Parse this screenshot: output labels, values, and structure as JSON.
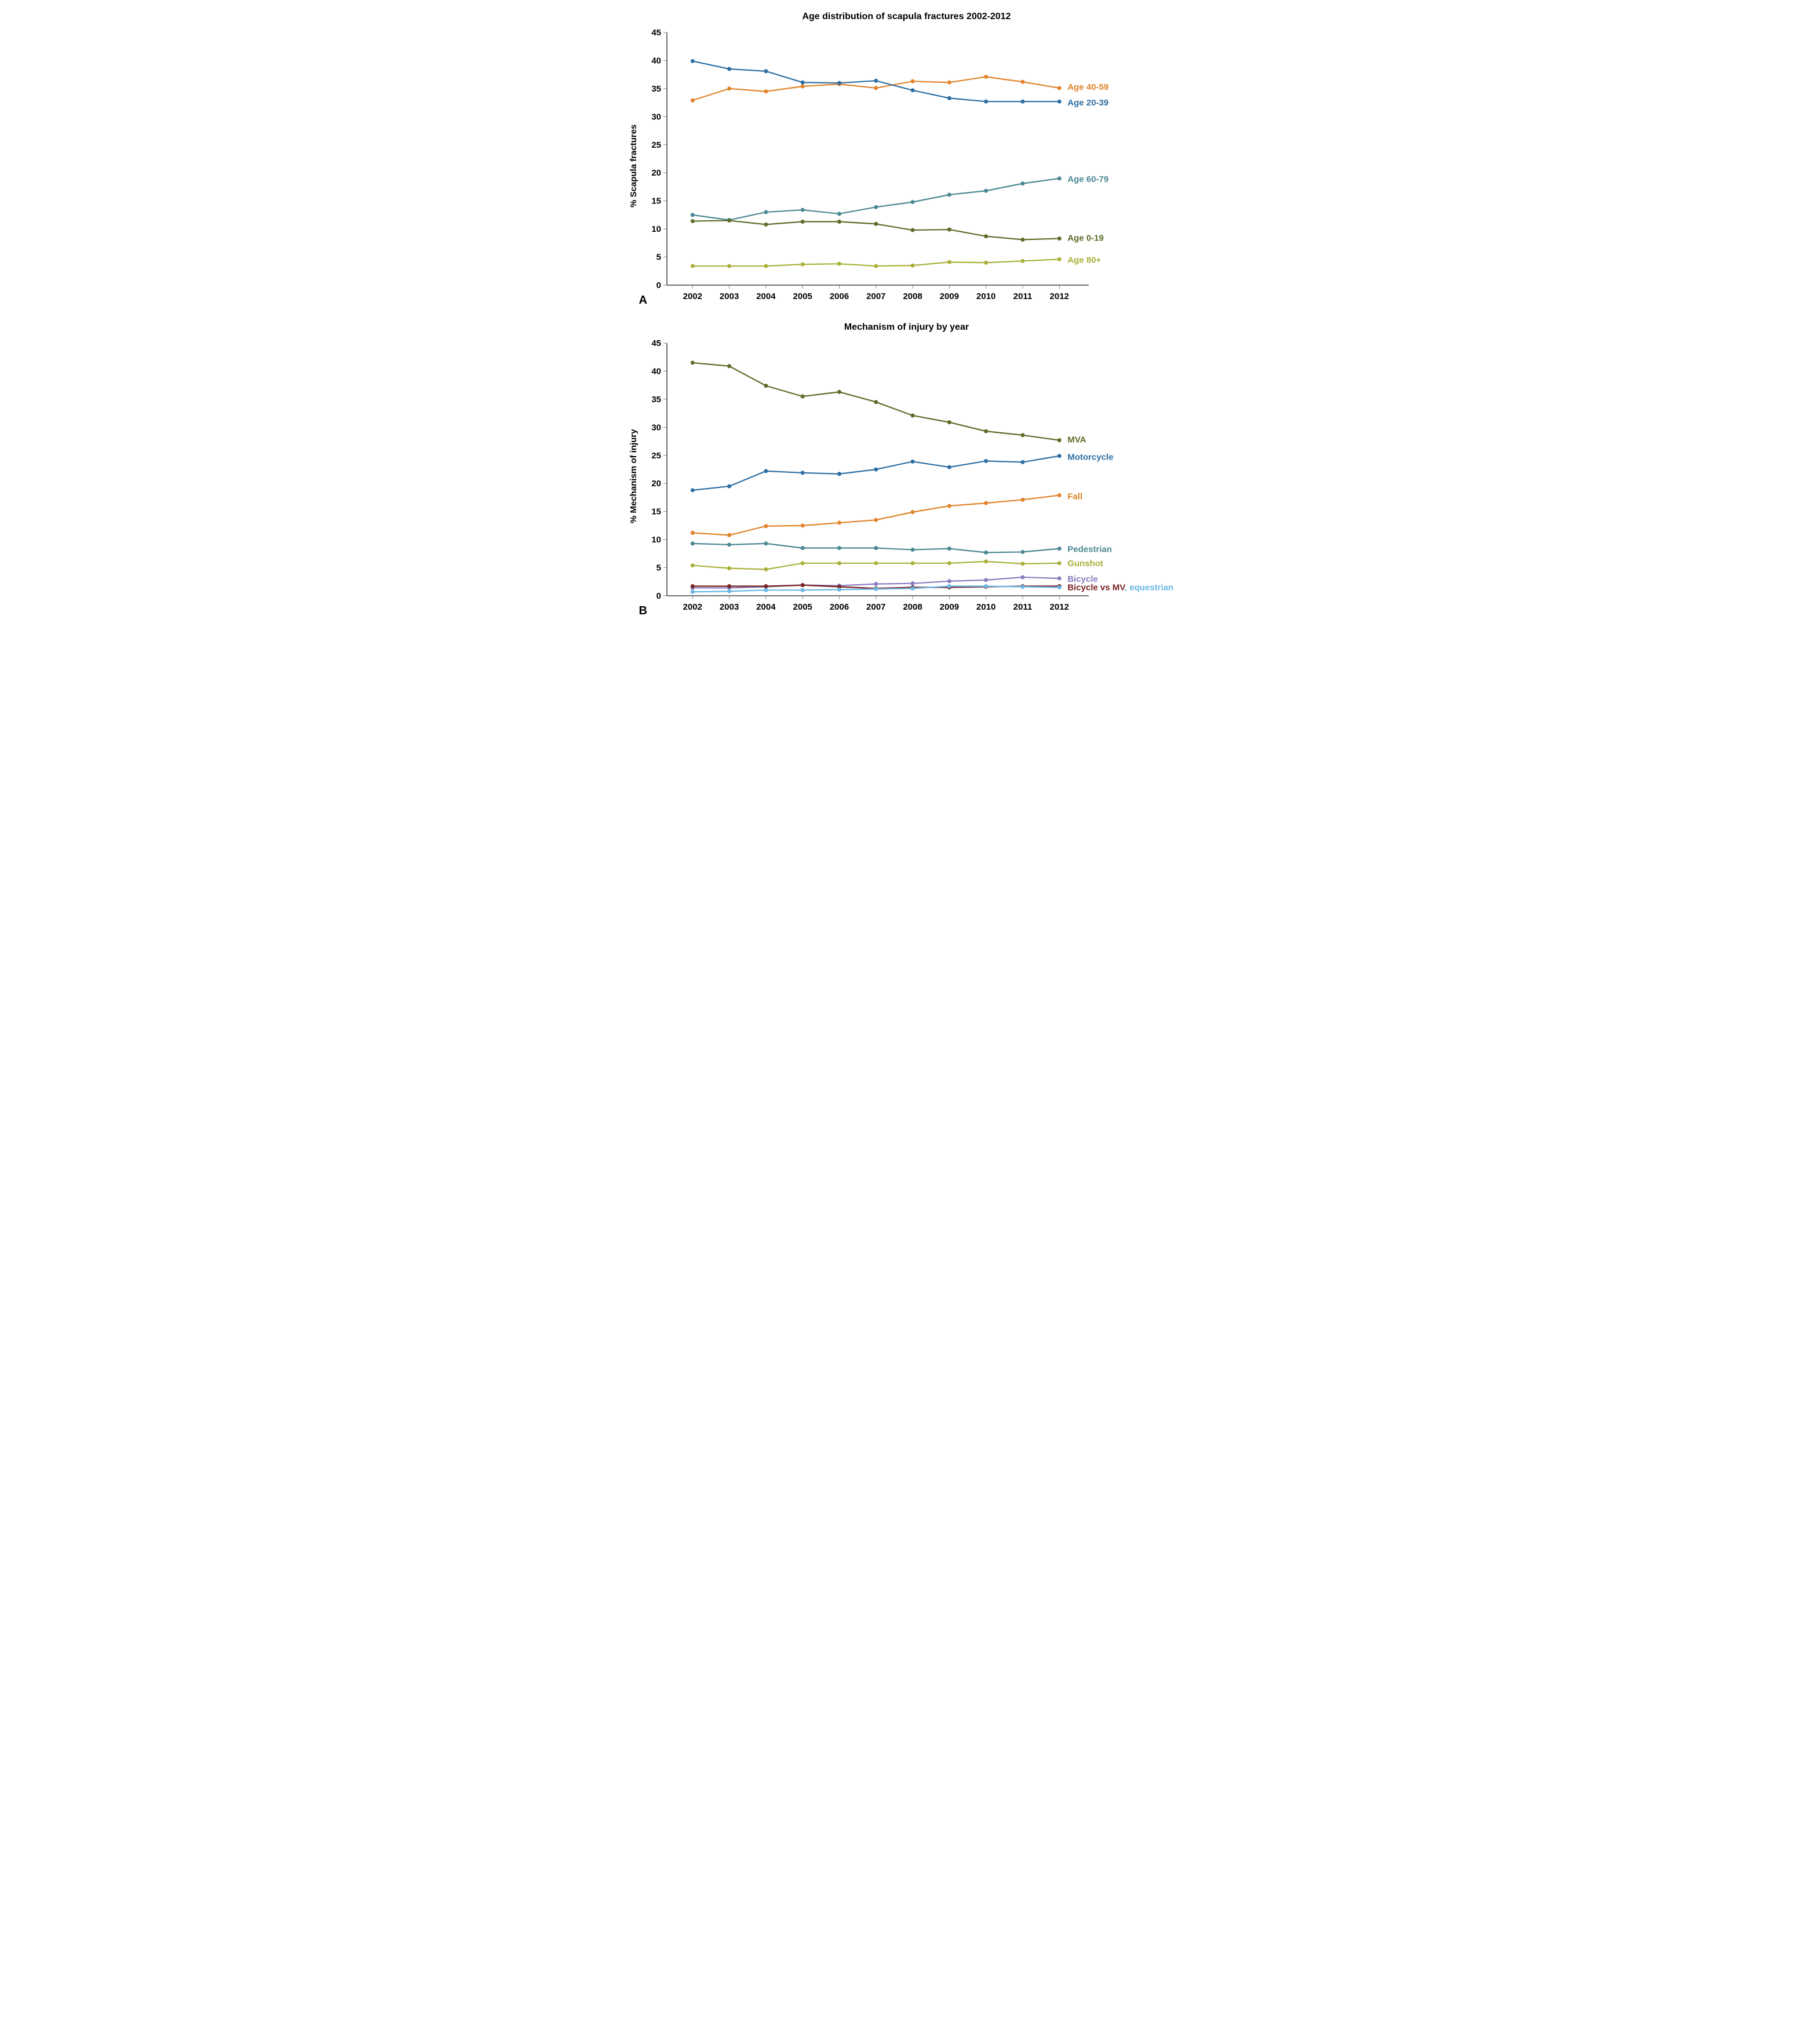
{
  "chartA": {
    "title": "Age distribution of scapula fractures 2002-2012",
    "ylabel": "% Scapula fractures",
    "panel_letter": "A",
    "xvals": [
      2002,
      2003,
      2004,
      2005,
      2006,
      2007,
      2008,
      2009,
      2010,
      2011,
      2012
    ],
    "ylim": [
      0,
      45
    ],
    "ytick_step": 5,
    "background_color": "#ffffff",
    "axis_color": "#444444",
    "tick_color": "#888888",
    "marker_radius": 3.5,
    "line_width": 2.2,
    "series": [
      {
        "name": "Age 40-59",
        "color": "#e1832b",
        "values": [
          32.9,
          35.0,
          34.5,
          35.4,
          35.8,
          35.1,
          36.3,
          36.1,
          37.1,
          36.2,
          35.1
        ],
        "label_y": 35.3
      },
      {
        "name": "Age 20-39",
        "color": "#2e6fa3",
        "values": [
          39.9,
          38.5,
          38.1,
          36.1,
          36.0,
          36.4,
          34.7,
          33.3,
          32.7,
          32.7,
          32.7
        ],
        "label_y": 32.5
      },
      {
        "name": "Age 60-79",
        "color": "#4b8893",
        "values": [
          12.5,
          11.6,
          13.0,
          13.4,
          12.7,
          13.9,
          14.8,
          16.1,
          16.8,
          18.1,
          19.0
        ],
        "label_y": 18.9
      },
      {
        "name": "Age 0-19",
        "color": "#5b6d29",
        "values": [
          11.4,
          11.5,
          10.8,
          11.3,
          11.3,
          10.9,
          9.8,
          9.9,
          8.7,
          8.1,
          8.3
        ],
        "label_y": 8.4
      },
      {
        "name": "Age 80+",
        "color": "#aab13a",
        "values": [
          3.4,
          3.4,
          3.4,
          3.7,
          3.8,
          3.4,
          3.5,
          4.1,
          4.0,
          4.3,
          4.6
        ],
        "label_y": 4.5
      }
    ]
  },
  "chartB": {
    "title": "Mechanism of injury by year",
    "ylabel": "% Mechanism of injury",
    "panel_letter": "B",
    "xvals": [
      2002,
      2003,
      2004,
      2005,
      2006,
      2007,
      2008,
      2009,
      2010,
      2011,
      2012
    ],
    "ylim": [
      0,
      45
    ],
    "ytick_step": 5,
    "background_color": "#ffffff",
    "axis_color": "#444444",
    "tick_color": "#888888",
    "marker_radius": 3.5,
    "line_width": 2.2,
    "series": [
      {
        "name": "MVA",
        "color": "#5b6d29",
        "values": [
          41.5,
          40.9,
          37.4,
          35.5,
          36.3,
          34.5,
          32.1,
          30.9,
          29.3,
          28.6,
          27.7
        ],
        "label_y": 27.8
      },
      {
        "name": "Motorcycle",
        "color": "#2e6fa3",
        "values": [
          18.8,
          19.5,
          22.2,
          21.9,
          21.7,
          22.5,
          23.9,
          22.9,
          24.0,
          23.8,
          24.9
        ],
        "label_y": 24.7
      },
      {
        "name": "Fall",
        "color": "#e1832b",
        "values": [
          11.2,
          10.8,
          12.4,
          12.5,
          13.0,
          13.5,
          14.9,
          16.0,
          16.5,
          17.1,
          17.9
        ],
        "label_y": 17.7
      },
      {
        "name": "Pedestrian",
        "color": "#4b8893",
        "values": [
          9.3,
          9.1,
          9.3,
          8.5,
          8.5,
          8.5,
          8.2,
          8.4,
          7.7,
          7.8,
          8.4
        ],
        "label_y": 8.3
      },
      {
        "name": "Gunshot",
        "color": "#aab13a",
        "values": [
          5.4,
          4.9,
          4.7,
          5.8,
          5.8,
          5.8,
          5.8,
          5.8,
          6.1,
          5.7,
          5.8
        ],
        "label_y": 5.8
      },
      {
        "name": "Bicycle",
        "color": "#8b7cc0",
        "values": [
          1.4,
          1.4,
          1.6,
          1.9,
          1.8,
          2.1,
          2.2,
          2.6,
          2.8,
          3.3,
          3.1
        ],
        "label_y": 3.0
      },
      {
        "name": "Bicycle vs MV",
        "color": "#7a2323",
        "values": [
          1.7,
          1.7,
          1.7,
          1.9,
          1.6,
          1.3,
          1.5,
          1.5,
          1.6,
          1.7,
          1.7
        ],
        "label_y": 1.5,
        "label_extra": ", equestrian",
        "extra_color": "#6bb7e6"
      },
      {
        "name": "equestrian",
        "color": "#6bb7e6",
        "values": [
          0.7,
          0.8,
          1.0,
          1.0,
          1.1,
          1.2,
          1.3,
          1.7,
          1.7,
          1.6,
          1.5
        ],
        "suppress_label": true
      }
    ]
  }
}
